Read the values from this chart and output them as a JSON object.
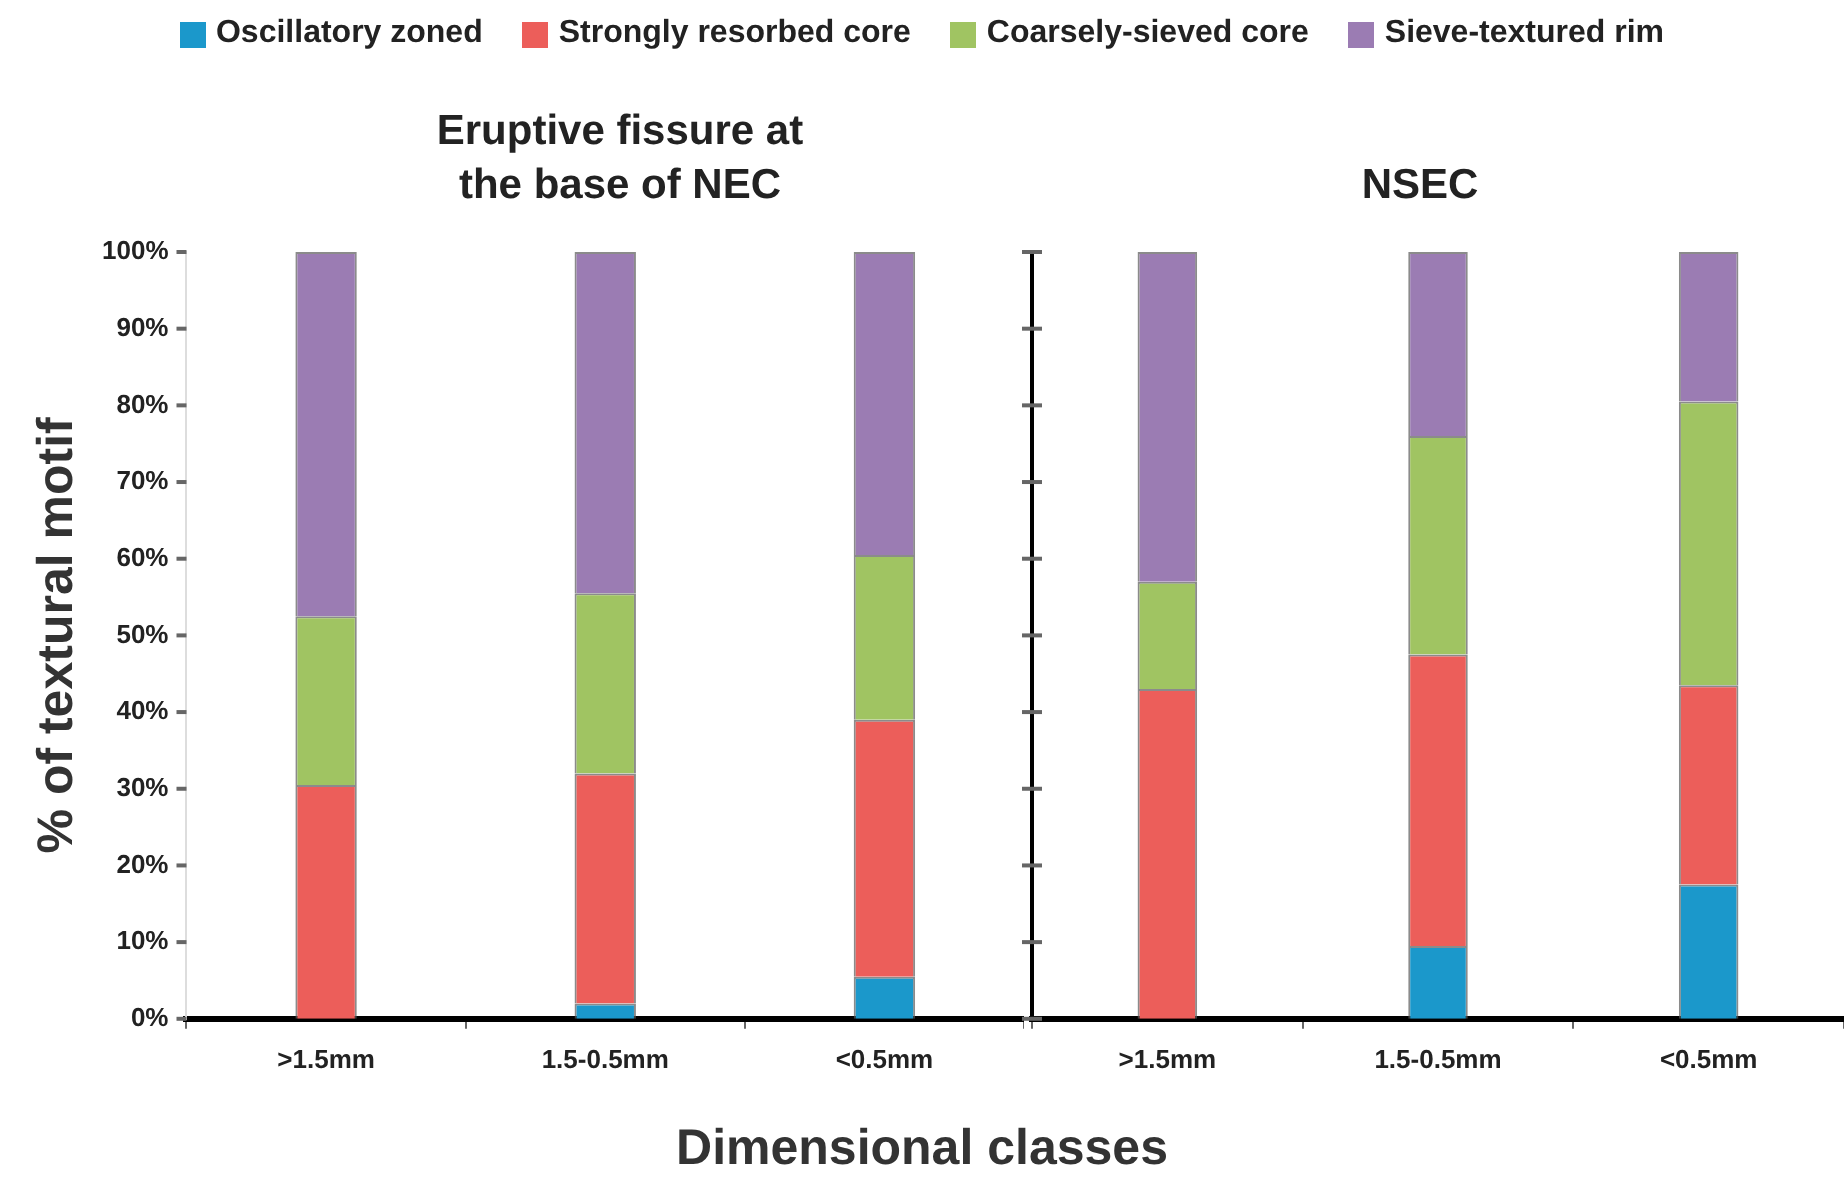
{
  "chart_data": [
    {
      "type": "bar",
      "title": "Eruptive fissure at the base of NEC",
      "xlabel": "Dimensional classes",
      "ylabel": "% of textural motif",
      "categories": [
        ">1.5mm",
        "1.5-0.5mm",
        "<0.5mm"
      ],
      "stacked": true,
      "legend": "top",
      "series": [
        {
          "name": "Oscillatory zoned",
          "color": "#1b98cb",
          "values": [
            0,
            2,
            5.5
          ]
        },
        {
          "name": "Strongly resorbed core",
          "color": "#ec5e5a",
          "values": [
            30.5,
            30,
            33.5
          ]
        },
        {
          "name": "Coarsely-sieved core",
          "color": "#a0c462",
          "values": [
            22,
            23.5,
            21.5
          ]
        },
        {
          "name": "Sieve-textured rim",
          "color": "#9b7cb3",
          "values": [
            47.5,
            44.5,
            39.5
          ]
        }
      ],
      "ylim": [
        0,
        100
      ],
      "yticks": [
        {
          "value": 0,
          "label": "0%"
        },
        {
          "value": 10,
          "label": "10%"
        },
        {
          "value": 20,
          "label": "20%"
        },
        {
          "value": 30,
          "label": "30%"
        },
        {
          "value": 40,
          "label": "40%"
        },
        {
          "value": 50,
          "label": "50%"
        },
        {
          "value": 60,
          "label": "60%"
        },
        {
          "value": 70,
          "label": "70%"
        },
        {
          "value": 80,
          "label": "80%"
        },
        {
          "value": 90,
          "label": "90%"
        },
        {
          "value": 100,
          "label": "100%"
        }
      ]
    },
    {
      "type": "bar",
      "title": "NSEC",
      "categories": [
        ">1.5mm",
        "1.5-0.5mm",
        "<0.5mm"
      ],
      "stacked": true,
      "tick_labels": "x",
      "series": [
        {
          "color": "#1b98cb",
          "values": [
            0,
            9.5,
            17.5
          ]
        },
        {
          "color": "#ec5e5a",
          "values": [
            43,
            38,
            26
          ]
        },
        {
          "color": "#a0c462",
          "values": [
            14,
            28.5,
            37
          ]
        },
        {
          "color": "#9b7cb3",
          "values": [
            43,
            24,
            19.5
          ]
        }
      ],
      "ylim": [
        0,
        100
      ],
      "yticks": [
        {
          "value": 0,
          "label": null
        },
        {
          "value": 10,
          "label": null
        },
        {
          "value": 20,
          "label": null
        },
        {
          "value": 30,
          "label": null
        },
        {
          "value": 40,
          "label": null
        },
        {
          "value": 50,
          "label": null
        },
        {
          "value": 60,
          "label": null
        },
        {
          "value": 70,
          "label": null
        },
        {
          "value": 80,
          "label": null
        },
        {
          "value": 90,
          "label": null
        },
        {
          "value": 100,
          "label": null
        }
      ]
    }
  ]
}
